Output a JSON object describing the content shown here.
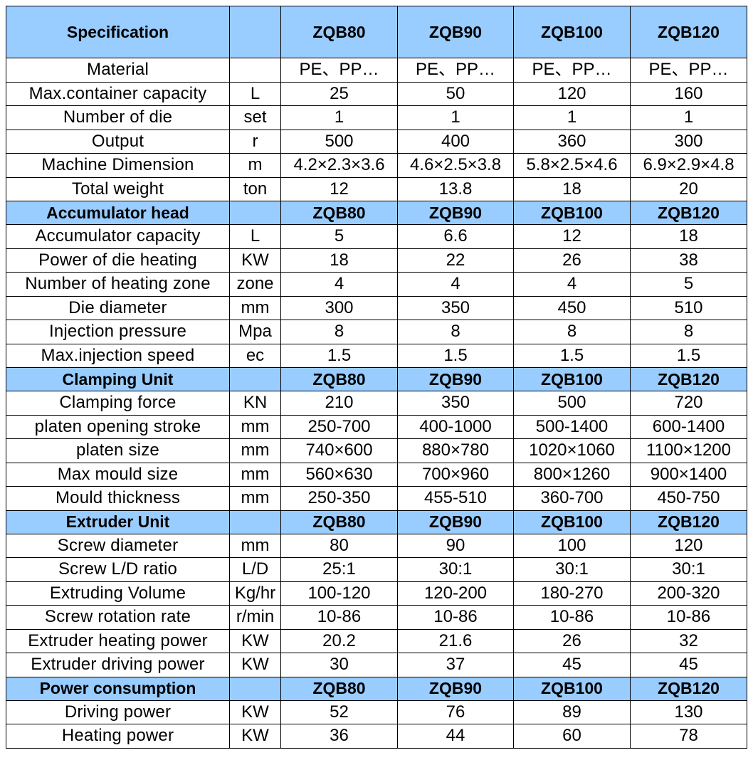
{
  "sections": [
    {
      "title": "Specification",
      "unit_header": "",
      "models": [
        "ZQB80",
        "ZQB90",
        "ZQB100",
        "ZQB120"
      ],
      "rows": [
        {
          "param": "Material",
          "unit": "",
          "values": [
            "PE、PP…",
            "PE、PP…",
            "PE、PP…",
            "PE、PP…"
          ]
        },
        {
          "param": "Max.container capacity",
          "unit": "L",
          "values": [
            "25",
            "50",
            "120",
            "160"
          ]
        },
        {
          "param": "Number of die",
          "unit": "set",
          "values": [
            "1",
            "1",
            "1",
            "1"
          ]
        },
        {
          "param": "Output",
          "unit": "r",
          "values": [
            "500",
            "400",
            "360",
            "300"
          ]
        },
        {
          "param": "Machine Dimension",
          "unit": "m",
          "values": [
            "4.2×2.3×3.6",
            "4.6×2.5×3.8",
            "5.8×2.5×4.6",
            "6.9×2.9×4.8"
          ]
        },
        {
          "param": "Total weight",
          "unit": "ton",
          "values": [
            "12",
            "13.8",
            "18",
            "20"
          ]
        }
      ]
    },
    {
      "title": "Accumulator head",
      "unit_header": "",
      "models": [
        "ZQB80",
        "ZQB90",
        "ZQB100",
        "ZQB120"
      ],
      "rows": [
        {
          "param": "Accumulator capacity",
          "unit": "L",
          "values": [
            "5",
            "6.6",
            "12",
            "18"
          ]
        },
        {
          "param": "Power of die heating",
          "unit": "KW",
          "values": [
            "18",
            "22",
            "26",
            "38"
          ]
        },
        {
          "param": "Number of heating zone",
          "unit": "zone",
          "values": [
            "4",
            "4",
            "4",
            "5"
          ]
        },
        {
          "param": "Die diameter",
          "unit": "mm",
          "values": [
            "300",
            "350",
            "450",
            "510"
          ]
        },
        {
          "param": "Injection pressure",
          "unit": "Mpa",
          "values": [
            "8",
            "8",
            "8",
            "8"
          ]
        },
        {
          "param": "Max.injection speed",
          "unit": "ec",
          "values": [
            "1.5",
            "1.5",
            "1.5",
            "1.5"
          ]
        }
      ]
    },
    {
      "title": "Clamping Unit",
      "unit_header": "",
      "models": [
        "ZQB80",
        "ZQB90",
        "ZQB100",
        "ZQB120"
      ],
      "rows": [
        {
          "param": "Clamping force",
          "unit": "KN",
          "values": [
            "210",
            "350",
            "500",
            "720"
          ]
        },
        {
          "param": "platen opening stroke",
          "unit": "mm",
          "values": [
            "250-700",
            "400-1000",
            "500-1400",
            "600-1400"
          ]
        },
        {
          "param": "platen size",
          "unit": "mm",
          "values": [
            "740×600",
            "880×780",
            "1020×1060",
            "1100×1200"
          ]
        },
        {
          "param": "Max mould size",
          "unit": "mm",
          "values": [
            "560×630",
            "700×960",
            "800×1260",
            "900×1400"
          ]
        },
        {
          "param": "Mould thickness",
          "unit": "mm",
          "values": [
            "250-350",
            "455-510",
            "360-700",
            "450-750"
          ]
        }
      ]
    },
    {
      "title": "Extruder Unit",
      "unit_header": "",
      "models": [
        "ZQB80",
        "ZQB90",
        "ZQB100",
        "ZQB120"
      ],
      "rows": [
        {
          "param": "Screw diameter",
          "unit": "mm",
          "values": [
            "80",
            "90",
            "100",
            "120"
          ]
        },
        {
          "param": "Screw L/D ratio",
          "unit": "L/D",
          "values": [
            "25:1",
            "30:1",
            "30:1",
            "30:1"
          ]
        },
        {
          "param": "Extruding Volume",
          "unit": "Kg/hr",
          "values": [
            "100-120",
            "120-200",
            "180-270",
            "200-320"
          ]
        },
        {
          "param": "Screw rotation rate",
          "unit": "r/min",
          "values": [
            "10-86",
            "10-86",
            "10-86",
            "10-86"
          ]
        },
        {
          "param": "Extruder heating power",
          "unit": "KW",
          "values": [
            "20.2",
            "21.6",
            "26",
            "32"
          ]
        },
        {
          "param": "Extruder driving power",
          "unit": "KW",
          "values": [
            "30",
            "37",
            "45",
            "45"
          ]
        }
      ]
    },
    {
      "title": "Power consumption",
      "unit_header": "",
      "models": [
        "ZQB80",
        "ZQB90",
        "ZQB100",
        "ZQB120"
      ],
      "rows": [
        {
          "param": "Driving power",
          "unit": "KW",
          "values": [
            "52",
            "76",
            "89",
            "130"
          ]
        },
        {
          "param": "Heating power",
          "unit": "KW",
          "values": [
            "36",
            "44",
            "60",
            "78"
          ]
        }
      ]
    }
  ],
  "colors": {
    "header_bg": "#99ccff",
    "border": "#000000",
    "text": "#000000"
  }
}
